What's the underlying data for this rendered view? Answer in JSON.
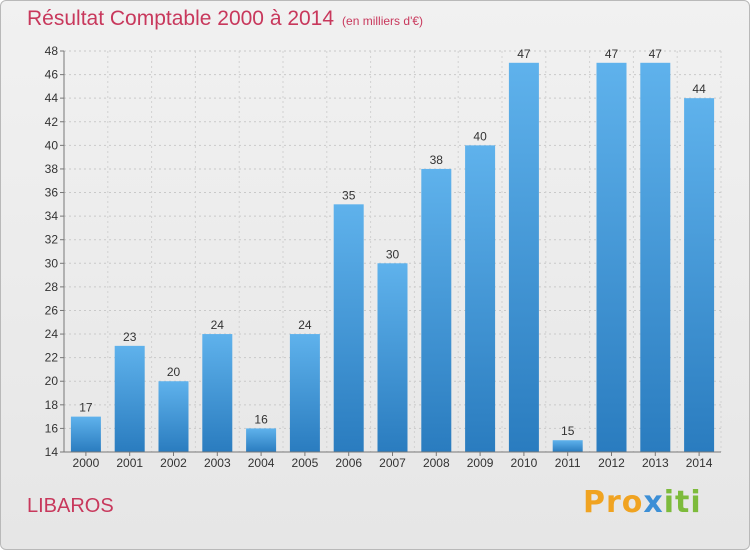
{
  "title": "Résultat Comptable 2000 à 2014",
  "subtitle": "(en milliers d'€)",
  "location": "LIBAROS",
  "logo": {
    "p1": "Pro",
    "p2": "x",
    "p3": "iti"
  },
  "colors": {
    "title": "#c8385c",
    "bar_top": "#5fb2ec",
    "bar_bottom": "#2a7cbf"
  },
  "chart_data": {
    "type": "bar",
    "title": "Résultat Comptable 2000 à 2014",
    "subtitle": "(en milliers d'€)",
    "categories": [
      "2000",
      "2001",
      "2002",
      "2003",
      "2004",
      "2005",
      "2006",
      "2007",
      "2008",
      "2009",
      "2010",
      "2011",
      "2012",
      "2013",
      "2014"
    ],
    "values": [
      17,
      23,
      20,
      24,
      16,
      24,
      35,
      30,
      38,
      40,
      47,
      15,
      47,
      47,
      44
    ],
    "ylim": [
      14,
      48
    ],
    "yticks": [
      14,
      16,
      18,
      20,
      22,
      24,
      26,
      28,
      30,
      32,
      34,
      36,
      38,
      40,
      42,
      44,
      46,
      48
    ],
    "grid": true,
    "legend": "none"
  }
}
